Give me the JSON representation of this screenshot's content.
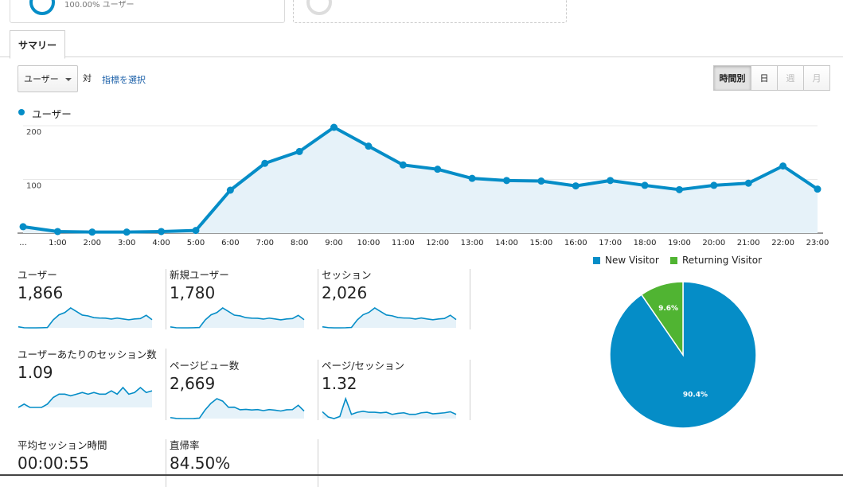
{
  "top_card": {
    "percent_text": "100.00% ユーザー"
  },
  "tabs": {
    "summary": "サマリー"
  },
  "controls": {
    "metric_select": "ユーザー",
    "vs_label": "対",
    "select_metric_link": "指標を選択",
    "granularity": [
      {
        "label": "時間別",
        "state": "active"
      },
      {
        "label": "日",
        "state": "normal"
      },
      {
        "label": "週",
        "state": "disabled"
      },
      {
        "label": "月",
        "state": "disabled"
      }
    ]
  },
  "chart_data": {
    "type": "area",
    "series": [
      {
        "name": "ユーザー",
        "color": "#058dc7",
        "values": [
          12,
          3,
          2,
          2,
          3,
          5,
          80,
          130,
          152,
          197,
          162,
          127,
          119,
          102,
          98,
          97,
          88,
          98,
          89,
          81,
          89,
          93,
          125,
          82
        ]
      }
    ],
    "x_tick_labels": [
      "...",
      "1:00",
      "2:00",
      "3:00",
      "4:00",
      "5:00",
      "6:00",
      "7:00",
      "8:00",
      "9:00",
      "10:00",
      "11:00",
      "12:00",
      "13:00",
      "14:00",
      "15:00",
      "16:00",
      "17:00",
      "18:00",
      "19:00",
      "20:00",
      "21:00",
      "22:00",
      "23:00"
    ],
    "y_tick_labels": [
      "200",
      "100"
    ],
    "y_ticks": [
      200,
      100
    ],
    "ylim": [
      0,
      200
    ],
    "grid": true,
    "legend": "top-left"
  },
  "metrics": [
    {
      "label": "ユーザー",
      "value": "1,866",
      "spark": [
        12,
        3,
        2,
        2,
        3,
        5,
        80,
        130,
        152,
        197,
        162,
        127,
        119,
        102,
        98,
        97,
        88,
        98,
        89,
        81,
        89,
        93,
        125,
        82
      ]
    },
    {
      "label": "新規ユーザー",
      "value": "1,780",
      "spark": [
        11,
        3,
        2,
        2,
        3,
        5,
        76,
        124,
        145,
        188,
        155,
        121,
        114,
        97,
        93,
        92,
        84,
        93,
        85,
        77,
        85,
        89,
        119,
        78
      ]
    },
    {
      "label": "セッション",
      "value": "2,026",
      "spark": [
        13,
        4,
        2,
        2,
        3,
        6,
        86,
        140,
        165,
        212,
        175,
        138,
        129,
        111,
        106,
        105,
        95,
        106,
        96,
        88,
        96,
        101,
        135,
        89
      ]
    },
    {
      "label": "ユーザーあたりのセッション数",
      "value": "1.09",
      "spark": [
        1.0,
        1.02,
        1.0,
        1.0,
        1.0,
        1.02,
        1.06,
        1.08,
        1.08,
        1.07,
        1.08,
        1.09,
        1.08,
        1.09,
        1.08,
        1.08,
        1.1,
        1.08,
        1.12,
        1.08,
        1.09,
        1.12,
        1.09,
        1.1
      ]
    },
    {
      "label": "ページビュー数",
      "value": "2,669",
      "spark": [
        15,
        5,
        3,
        3,
        4,
        8,
        110,
        190,
        245,
        215,
        140,
        142,
        110,
        115,
        108,
        112,
        100,
        112,
        105,
        95,
        110,
        112,
        165,
        95
      ]
    },
    {
      "label": "ページ/セッション",
      "value": "1.32",
      "spark": [
        1.35,
        1.25,
        1.22,
        1.26,
        1.6,
        1.3,
        1.34,
        1.36,
        1.34,
        1.34,
        1.33,
        1.34,
        1.3,
        1.32,
        1.33,
        1.3,
        1.3,
        1.33,
        1.34,
        1.31,
        1.32,
        1.33,
        1.35,
        1.3
      ]
    },
    {
      "label": "平均セッション時間",
      "value": "00:00:55"
    },
    {
      "label": "直帰率",
      "value": "84.50%"
    }
  ],
  "pie": {
    "legend": [
      {
        "name": "New Visitor",
        "color": "#058dc7"
      },
      {
        "name": "Returning Visitor",
        "color": "#50b432"
      }
    ],
    "slices": [
      {
        "name": "New Visitor",
        "value": 90.4,
        "label": "90.4%",
        "color": "#058dc7"
      },
      {
        "name": "Returning Visitor",
        "value": 9.6,
        "label": "9.6%",
        "color": "#50b432"
      }
    ]
  }
}
